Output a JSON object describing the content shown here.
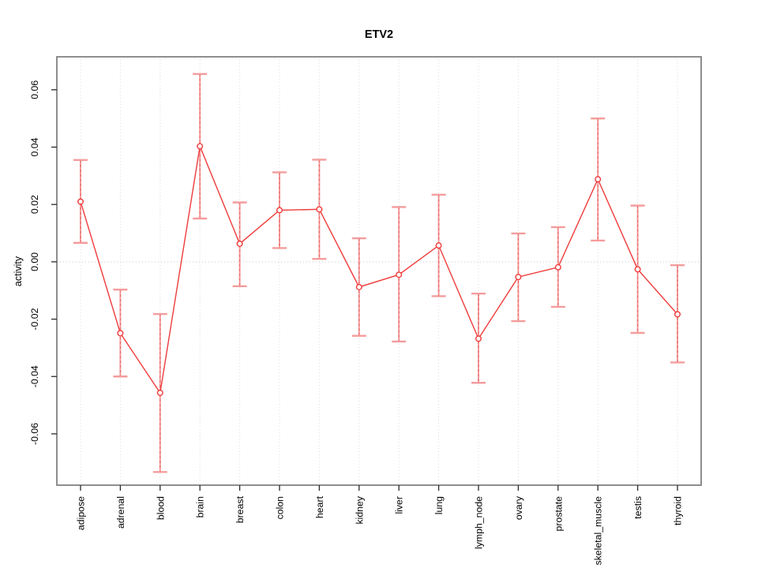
{
  "figure": {
    "title": "ETV2",
    "ylabel": "activity"
  },
  "chart_data": {
    "type": "line",
    "title": "ETV2",
    "xlabel": "",
    "ylabel": "activity",
    "legend": "none",
    "marker": "open-circle",
    "error_bars": true,
    "categories": [
      "adipose",
      "adrenal",
      "blood",
      "brain",
      "breast",
      "colon",
      "heart",
      "kidney",
      "liver",
      "lung",
      "lymph_node",
      "ovary",
      "prostate",
      "skeletal_muscle",
      "testis",
      "thyroid"
    ],
    "series": [
      {
        "name": "activity_mean",
        "values": [
          0.021,
          -0.0249,
          -0.0457,
          0.0403,
          0.0063,
          0.018,
          0.0183,
          -0.0088,
          -0.0045,
          0.0057,
          -0.0268,
          -0.0053,
          -0.0019,
          0.0288,
          -0.0026,
          -0.0183
        ]
      },
      {
        "name": "ci_lower",
        "values": [
          0.0066,
          -0.04,
          -0.0733,
          0.0151,
          -0.0085,
          0.0048,
          0.001,
          -0.0258,
          -0.0278,
          -0.012,
          -0.0422,
          -0.0207,
          -0.0157,
          0.0074,
          -0.0248,
          -0.0351
        ]
      },
      {
        "name": "ci_upper",
        "values": [
          0.0355,
          -0.0097,
          -0.0182,
          0.0655,
          0.0207,
          0.0312,
          0.0356,
          0.0082,
          0.0191,
          0.0234,
          -0.0111,
          0.0099,
          0.0121,
          0.05,
          0.0196,
          -0.0012
        ]
      }
    ],
    "yticks": [
      -0.06,
      -0.04,
      -0.02,
      0.0,
      0.02,
      0.04,
      0.06
    ],
    "ytick_labels": [
      "-0.06",
      "-0.04",
      "-0.02",
      "0.00",
      "0.02",
      "0.04",
      "0.06"
    ],
    "ylim": [
      -0.0779,
      0.0715
    ],
    "grid": {
      "vertical": "dotted",
      "horizontal": "zero-line-dotted"
    },
    "colors": {
      "line": "#ef3b3b",
      "point": "#ef3b3b",
      "error_bar": "#f49c9c",
      "error_bar_dash": "#e96060",
      "gridline": "#dcdcdc",
      "zero_line": "#c9c9c9",
      "frame": "#828282",
      "tick": "#2b2b2b",
      "text": "#000000"
    }
  }
}
